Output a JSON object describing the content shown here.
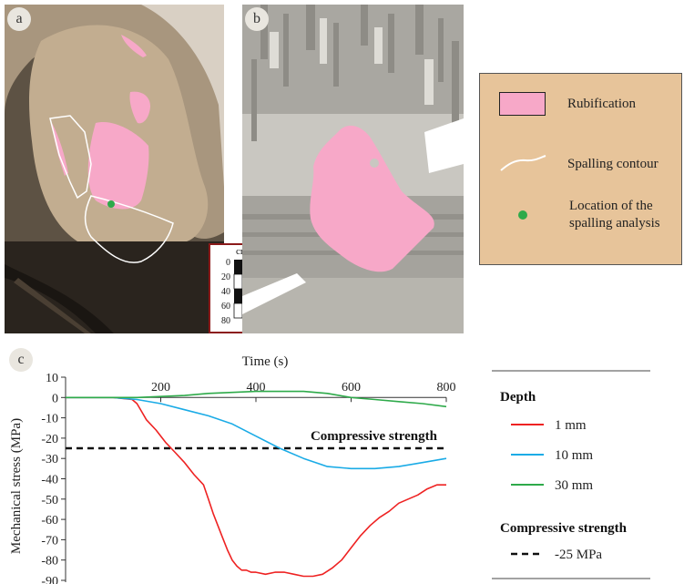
{
  "panels": {
    "a": {
      "letter": "a"
    },
    "b": {
      "letter": "b"
    },
    "c": {
      "letter": "c"
    }
  },
  "scale_bar": {
    "unit": "cm",
    "ticks": [
      "0",
      "20",
      "40",
      "60",
      "80"
    ]
  },
  "map_legend": {
    "items": [
      {
        "label": "Rubification",
        "color": "#f7a8c8"
      },
      {
        "label": "Spalling contour",
        "color": "#ffffff"
      },
      {
        "label": "Location of the spalling analysis",
        "color": "#2eaa4a"
      }
    ]
  },
  "colors": {
    "rubification": "#f7a8c8",
    "legend_bg": "#e7c49a"
  },
  "chart_data": {
    "type": "line",
    "title": "",
    "xlabel": "Time (s)",
    "ylabel": "Mechanical stress (MPa)",
    "xlim": [
      0,
      800
    ],
    "ylim": [
      -90,
      10
    ],
    "x_ticks": [
      200,
      400,
      600,
      800
    ],
    "y_ticks": [
      10,
      0,
      -10,
      -20,
      -30,
      -40,
      -50,
      -60,
      -70,
      -80,
      -90
    ],
    "x_axis_position": "top",
    "grid": false,
    "legend_position": "right",
    "legend_title": "Depth",
    "series": [
      {
        "name": "1 mm",
        "color": "#ee2222",
        "x": [
          0,
          100,
          140,
          150,
          160,
          170,
          190,
          210,
          230,
          250,
          270,
          290,
          300,
          310,
          320,
          330,
          340,
          350,
          360,
          370,
          380,
          390,
          400,
          420,
          440,
          460,
          480,
          500,
          520,
          540,
          560,
          580,
          600,
          620,
          640,
          660,
          680,
          700,
          720,
          740,
          760,
          780,
          800
        ],
        "y": [
          0,
          0,
          -1,
          -3,
          -7,
          -11,
          -16,
          -22,
          -27,
          -32,
          -38,
          -43,
          -50,
          -57,
          -63,
          -69,
          -75,
          -80,
          -83,
          -85,
          -85,
          -86,
          -86,
          -87,
          -86,
          -86,
          -87,
          -88,
          -88,
          -87,
          -84,
          -80,
          -74,
          -68,
          -63,
          -59,
          -56,
          -52,
          -50,
          -48,
          -45,
          -43,
          -43
        ]
      },
      {
        "name": "10 mm",
        "color": "#1aabe6",
        "x": [
          0,
          100,
          150,
          200,
          250,
          300,
          350,
          400,
          450,
          500,
          550,
          600,
          650,
          700,
          750,
          800
        ],
        "y": [
          0,
          0,
          -1,
          -3,
          -6,
          -9,
          -13,
          -19,
          -25,
          -30,
          -34,
          -35,
          -35,
          -34,
          -32,
          -30
        ]
      },
      {
        "name": "30 mm",
        "color": "#2eaa4a",
        "x": [
          0,
          100,
          150,
          200,
          250,
          300,
          350,
          400,
          450,
          500,
          550,
          600,
          650,
          700,
          750,
          800
        ],
        "y": [
          0,
          0,
          0,
          0.5,
          1,
          2,
          2.5,
          3,
          3,
          3,
          2,
          0,
          -1,
          -2,
          -3,
          -4.5
        ]
      }
    ],
    "threshold": {
      "label": "Compressive strength",
      "value": -25,
      "color": "#111111"
    },
    "threshold_legend": {
      "title": "Compressive strength",
      "label": "-25 MPa"
    }
  }
}
